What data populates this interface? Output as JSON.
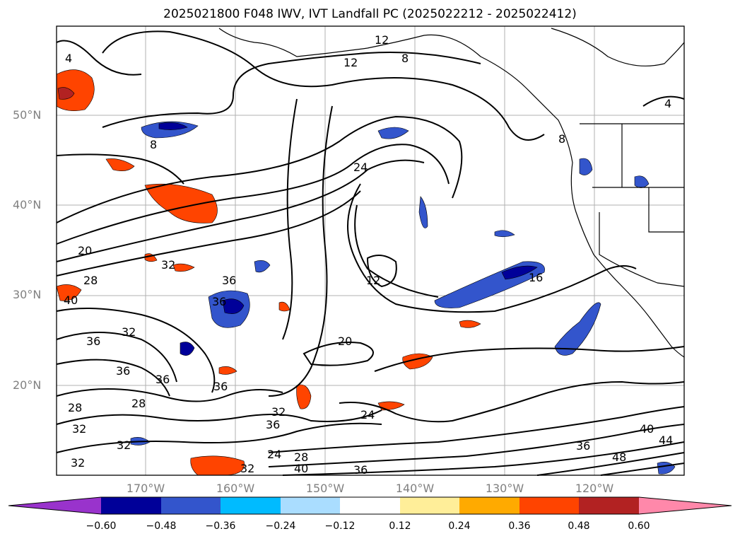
{
  "title": "2025021800 F048 IWV, IVT Landfall PC (2025022212 - 2025022412)",
  "lat_labels": [
    "50°N",
    "40°N",
    "30°N",
    "20°N"
  ],
  "lon_labels": [
    "170°W",
    "160°W",
    "150°W",
    "140°W",
    "130°W",
    "120°W"
  ],
  "colorbar": {
    "colors": [
      "#9933cc",
      "#000099",
      "#3355cc",
      "#00bbff",
      "#aaddff",
      "#ffffff",
      "#ffee99",
      "#ffaa00",
      "#ff4400",
      "#b22222",
      "#ff88aa"
    ],
    "tick_labels": [
      "−0.60",
      "−0.48",
      "−0.36",
      "−0.24",
      "−0.12",
      "0.12",
      "0.24",
      "0.36",
      "0.48",
      "0.60"
    ]
  },
  "contour_labels": [
    "12",
    "12",
    "8",
    "8",
    "8",
    "4",
    "4",
    "24",
    "20",
    "28",
    "40",
    "32",
    "36",
    "12",
    "16",
    "36",
    "32",
    "36",
    "36",
    "36",
    "36",
    "20",
    "28",
    "28",
    "32",
    "32",
    "36",
    "24",
    "32",
    "24",
    "28",
    "40",
    "36",
    "40",
    "44",
    "36",
    "48",
    "32",
    "32"
  ],
  "map_elements": {
    "frame": "map-frame",
    "gridlines": "graticule",
    "coastlines": "coastline"
  }
}
